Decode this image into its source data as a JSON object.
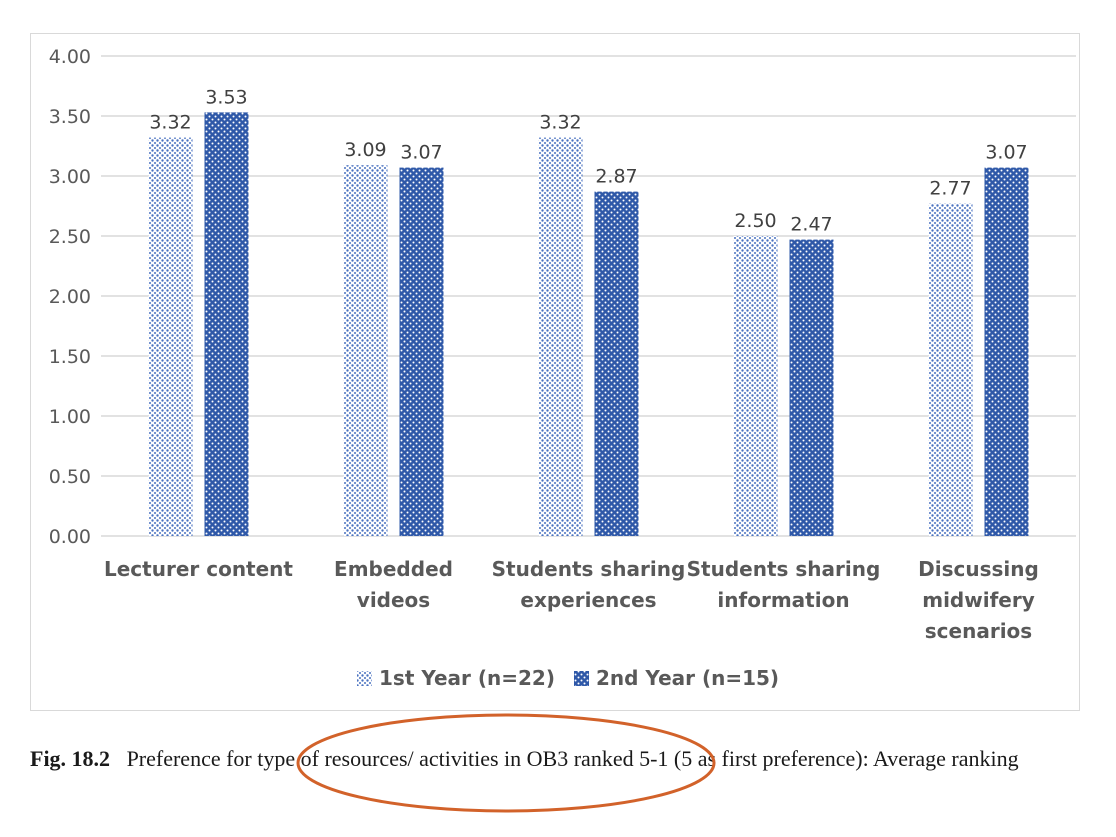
{
  "chart_data": {
    "type": "bar",
    "categories": [
      [
        "Lecturer content"
      ],
      [
        "Embedded",
        "videos"
      ],
      [
        "Students sharing",
        "experiences"
      ],
      [
        "Students sharing",
        "information"
      ],
      [
        "Discussing",
        "midwifery",
        "scenarios"
      ]
    ],
    "series": [
      {
        "name": "1st Year (n=22)",
        "values": [
          3.32,
          3.09,
          3.32,
          2.5,
          2.77
        ],
        "value_labels": [
          "3.32",
          "3.09",
          "3.32",
          "2.50",
          "2.77"
        ],
        "color": "#a9c0e6",
        "pattern": "fine dots"
      },
      {
        "name": "2nd Year (n=15)",
        "values": [
          3.53,
          3.07,
          2.87,
          2.47,
          3.07
        ],
        "value_labels": [
          "3.53",
          "3.07",
          "2.87",
          "2.47",
          "3.07"
        ],
        "color": "#2e58a8",
        "pattern": "white dots"
      }
    ],
    "ylim": [
      0,
      4
    ],
    "yticks": [
      "0.00",
      "0.50",
      "1.00",
      "1.50",
      "2.00",
      "2.50",
      "3.00",
      "3.50",
      "4.00"
    ],
    "grid": true,
    "legend": "bottom"
  },
  "caption": {
    "label": "Fig. 18.2",
    "text": "Preference for type of resources/ activities in OB3 ranked 5-1 (5 as first preference): Average ranking"
  },
  "colors": {
    "annotation_ellipse": "#d2622a",
    "gridline": "#d9d9d9"
  }
}
